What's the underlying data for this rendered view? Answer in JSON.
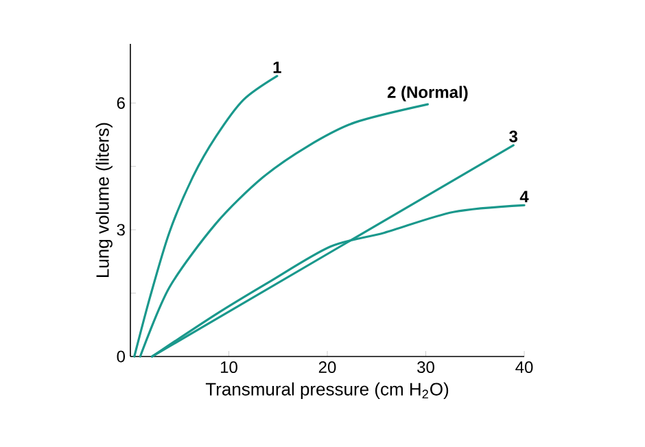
{
  "chart_data": {
    "type": "line",
    "xlabel": "Transmural pressure (cm H$_{2}$O)",
    "ylabel": "Lung volume (liters)",
    "xlim": [
      0,
      40
    ],
    "ylim": [
      0,
      7.4
    ],
    "xticks": [
      10,
      20,
      30,
      40
    ],
    "yticks": [
      0,
      {
        "value": 1.5,
        "label": null
      },
      3,
      {
        "value": 4.5,
        "label": null
      },
      6
    ],
    "marker": "none",
    "line_style": "solid",
    "series": [
      {
        "name": "1",
        "color": "#1a988c",
        "x": [
          0.4,
          2.0,
          3.95,
          6.3,
          8.7,
          11.5,
          14.9
        ],
        "values": [
          0,
          1.41,
          2.93,
          4.23,
          5.21,
          6.08,
          6.64
        ]
      },
      {
        "name": "2 (Normal)",
        "color": "#1a988c",
        "x": [
          1.0,
          3.95,
          8.7,
          13.4,
          18.1,
          22.8,
          30.2
        ],
        "values": [
          0,
          1.63,
          3.15,
          4.23,
          4.99,
          5.54,
          5.97
        ]
      },
      {
        "name": "3",
        "color": "#1a988c",
        "x": [
          2.2,
          38.9
        ],
        "values": [
          0,
          5.0
        ]
      },
      {
        "name": "4",
        "color": "#1a988c",
        "x": [
          2.2,
          8.7,
          14,
          20.3,
          25.8,
          32.8,
          40
        ],
        "values": [
          0,
          1.0,
          1.75,
          2.6,
          2.93,
          3.42,
          3.58
        ]
      }
    ]
  }
}
